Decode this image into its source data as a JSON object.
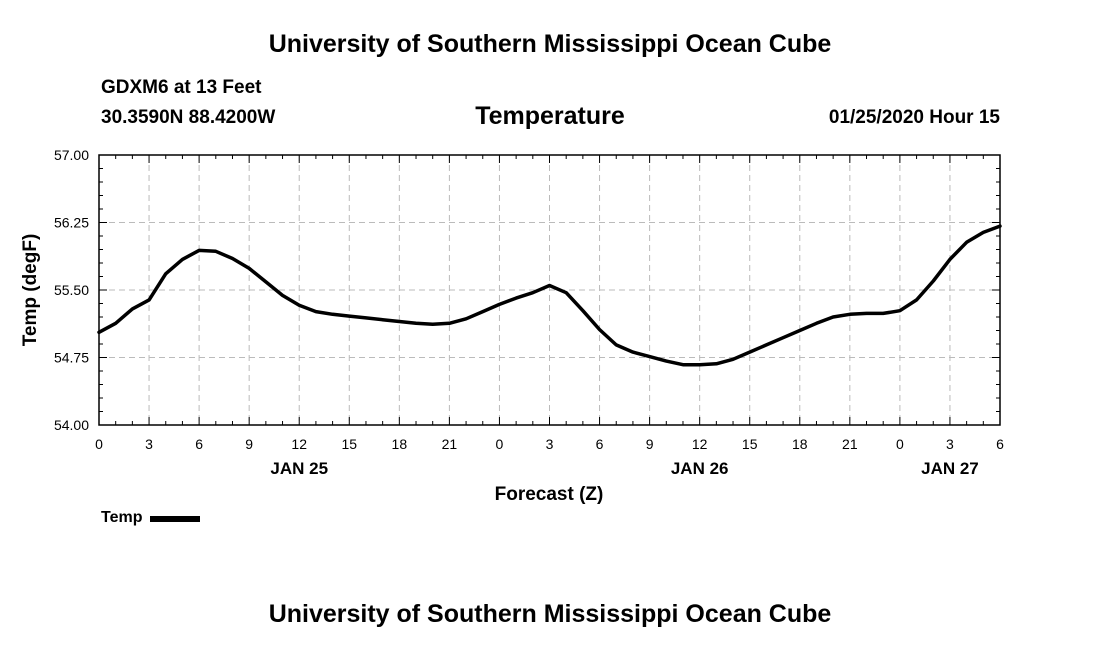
{
  "header": {
    "top_title": "University of Southern Mississippi Ocean Cube",
    "station": "GDXM6 at 13 Feet",
    "coords": "30.3590N 88.4200W",
    "date_hour": "01/25/2020 Hour 15"
  },
  "footer": {
    "bottom_title": "University of Southern Mississippi Ocean Cube"
  },
  "legend": {
    "label": "Temp",
    "color": "#000000"
  },
  "chart_data": {
    "type": "line",
    "title": "Temperature",
    "xlabel": "Forecast (Z)",
    "ylabel": "Temp (degF)",
    "ylim": [
      54.0,
      57.0
    ],
    "yticks": [
      "54.00",
      "54.75",
      "55.50",
      "56.25",
      "57.00"
    ],
    "xlim": [
      0,
      54
    ],
    "grid": true,
    "xticks": [
      {
        "x": 0,
        "label": "0"
      },
      {
        "x": 3,
        "label": "3"
      },
      {
        "x": 6,
        "label": "6"
      },
      {
        "x": 9,
        "label": "9"
      },
      {
        "x": 12,
        "label": "12"
      },
      {
        "x": 15,
        "label": "15"
      },
      {
        "x": 18,
        "label": "18"
      },
      {
        "x": 21,
        "label": "21"
      },
      {
        "x": 24,
        "label": "0"
      },
      {
        "x": 27,
        "label": "3"
      },
      {
        "x": 30,
        "label": "6"
      },
      {
        "x": 33,
        "label": "9"
      },
      {
        "x": 36,
        "label": "12"
      },
      {
        "x": 39,
        "label": "15"
      },
      {
        "x": 42,
        "label": "18"
      },
      {
        "x": 45,
        "label": "21"
      },
      {
        "x": 48,
        "label": "0"
      },
      {
        "x": 51,
        "label": "3"
      },
      {
        "x": 54,
        "label": "6"
      }
    ],
    "day_labels": [
      {
        "x": 12,
        "label": "JAN 25"
      },
      {
        "x": 36,
        "label": "JAN 26"
      },
      {
        "x": 51,
        "label": "JAN 27"
      }
    ],
    "series": [
      {
        "name": "Temp",
        "x": [
          0,
          1,
          2,
          3,
          4,
          5,
          6,
          7,
          8,
          9,
          10,
          11,
          12,
          13,
          14,
          15,
          16,
          17,
          18,
          19,
          20,
          21,
          22,
          23,
          24,
          25,
          26,
          27,
          28,
          29,
          30,
          31,
          32,
          33,
          34,
          35,
          36,
          37,
          38,
          39,
          40,
          41,
          42,
          43,
          44,
          45,
          46,
          47,
          48,
          49,
          50,
          51,
          52,
          53,
          54
        ],
        "values": [
          55.03,
          55.13,
          55.29,
          55.39,
          55.68,
          55.84,
          55.94,
          55.93,
          55.85,
          55.74,
          55.59,
          55.44,
          55.33,
          55.26,
          55.23,
          55.21,
          55.19,
          55.17,
          55.15,
          55.13,
          55.12,
          55.13,
          55.18,
          55.26,
          55.34,
          55.41,
          55.47,
          55.55,
          55.47,
          55.27,
          55.06,
          54.89,
          54.81,
          54.76,
          54.71,
          54.67,
          54.67,
          54.68,
          54.73,
          54.81,
          54.89,
          54.97,
          55.05,
          55.13,
          55.2,
          55.23,
          55.24,
          55.24,
          55.27,
          55.39,
          55.6,
          55.84,
          56.03,
          56.14,
          56.21
        ]
      }
    ]
  }
}
